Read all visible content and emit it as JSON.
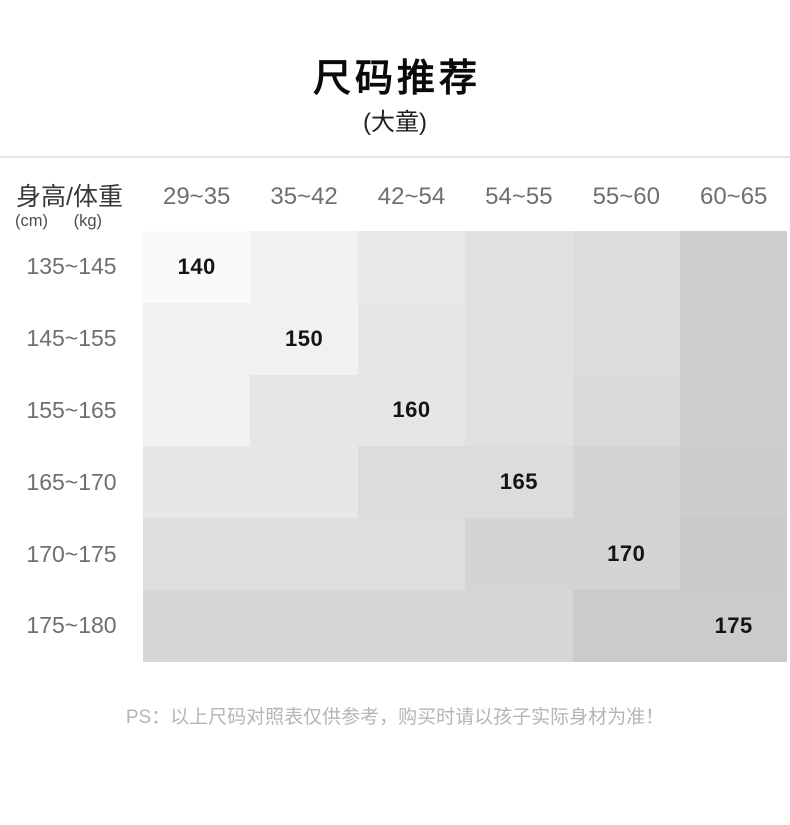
{
  "chart_data": {
    "type": "table",
    "title": "尺码推荐",
    "subtitle": "(大童)",
    "corner": {
      "label": "身高/体重",
      "unit_left": "(cm)",
      "unit_right": "(kg)"
    },
    "columns_weight_kg": [
      "29~35",
      "35~42",
      "42~54",
      "54~55",
      "55~60",
      "60~65"
    ],
    "rows_height_cm": [
      "135~145",
      "145~155",
      "155~165",
      "165~170",
      "170~175",
      "175~180"
    ],
    "recommendations": [
      {
        "height_cm": "135~145",
        "weight_kg": "29~35",
        "size": "140"
      },
      {
        "height_cm": "145~155",
        "weight_kg": "35~42",
        "size": "150"
      },
      {
        "height_cm": "155~165",
        "weight_kg": "42~54",
        "size": "160"
      },
      {
        "height_cm": "165~170",
        "weight_kg": "54~55",
        "size": "165"
      },
      {
        "height_cm": "170~175",
        "weight_kg": "55~60",
        "size": "170"
      },
      {
        "height_cm": "175~180",
        "weight_kg": "60~65",
        "size": "175"
      }
    ],
    "cells": [
      [
        {
          "size": "140",
          "bg": "#fafafa"
        },
        {
          "bg": "#f1f1f1"
        },
        {
          "bg": "#e8e8e8"
        },
        {
          "bg": "#e1e1e1"
        },
        {
          "bg": "#dcdcdc"
        },
        {
          "bg": "#cfcfcf"
        }
      ],
      [
        {
          "bg": "#f1f1f1"
        },
        {
          "size": "150",
          "bg": "#f1f1f1"
        },
        {
          "bg": "#e6e6e6"
        },
        {
          "bg": "#e1e1e1"
        },
        {
          "bg": "#dcdcdc"
        },
        {
          "bg": "#cfcfcf"
        }
      ],
      [
        {
          "bg": "#f1f1f1"
        },
        {
          "bg": "#e6e6e6"
        },
        {
          "size": "160",
          "bg": "#e6e6e6"
        },
        {
          "bg": "#e0e0e0"
        },
        {
          "bg": "#dadada"
        },
        {
          "bg": "#cfcfcf"
        }
      ],
      [
        {
          "bg": "#e7e7e7"
        },
        {
          "bg": "#e7e7e7"
        },
        {
          "bg": "#dcdcdc"
        },
        {
          "size": "165",
          "bg": "#dcdcdc"
        },
        {
          "bg": "#d4d4d4"
        },
        {
          "bg": "#cdcdcd"
        }
      ],
      [
        {
          "bg": "#dedede"
        },
        {
          "bg": "#dedede"
        },
        {
          "bg": "#dedede"
        },
        {
          "bg": "#d4d4d4"
        },
        {
          "size": "170",
          "bg": "#d4d4d4"
        },
        {
          "bg": "#c9c9c9"
        }
      ],
      [
        {
          "bg": "#d6d6d6"
        },
        {
          "bg": "#d6d6d6"
        },
        {
          "bg": "#d6d6d6"
        },
        {
          "bg": "#d6d6d6"
        },
        {
          "bg": "#cbcbcb"
        },
        {
          "size": "175",
          "bg": "#cbcbcb"
        }
      ]
    ],
    "note": "PS：以上尺码对照表仅供参考，购买时请以孩子实际身材为准！"
  },
  "colors": {
    "page_bg": "#ffffff",
    "title_text": "#0a0a0a",
    "subtitle_text": "#1f1f1f",
    "divider": "#e4e4e4",
    "corner_label_text": "#383838",
    "unit_text": "#4d4d4d",
    "column_header_text": "#6f6f6f",
    "row_label_text": "#6f6f6f",
    "size_value_text": "#141414",
    "footnote_text": "#b5b5b5"
  }
}
